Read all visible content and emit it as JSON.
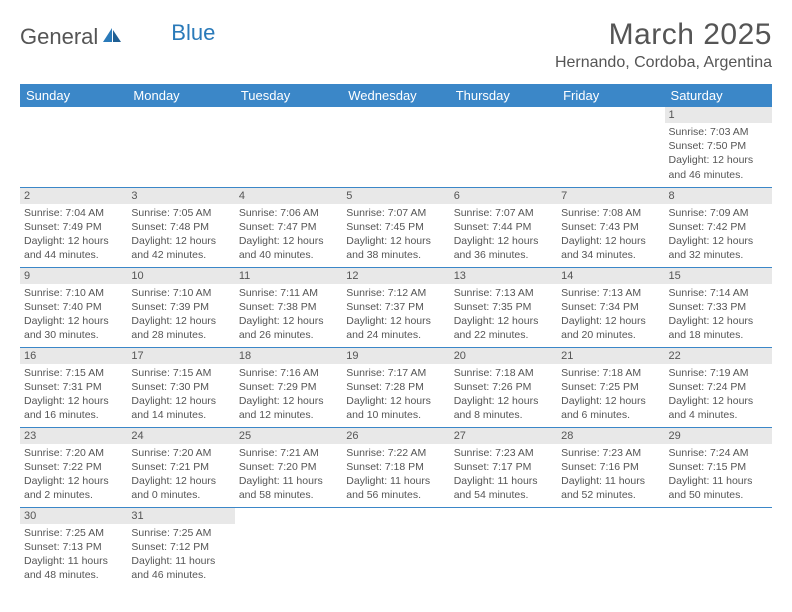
{
  "logo": {
    "part1": "General",
    "part2": "Blue"
  },
  "title": "March 2025",
  "location": "Hernando, Cordoba, Argentina",
  "colors": {
    "header_bg": "#3b87c8",
    "header_text": "#ffffff",
    "daynum_bg": "#e8e8e8",
    "border": "#3b87c8",
    "text": "#555555",
    "logo_blue": "#2a7ab9"
  },
  "weekdays": [
    "Sunday",
    "Monday",
    "Tuesday",
    "Wednesday",
    "Thursday",
    "Friday",
    "Saturday"
  ],
  "weeks": [
    [
      null,
      null,
      null,
      null,
      null,
      null,
      {
        "n": "1",
        "sunrise": "Sunrise: 7:03 AM",
        "sunset": "Sunset: 7:50 PM",
        "day1": "Daylight: 12 hours",
        "day2": "and 46 minutes."
      }
    ],
    [
      {
        "n": "2",
        "sunrise": "Sunrise: 7:04 AM",
        "sunset": "Sunset: 7:49 PM",
        "day1": "Daylight: 12 hours",
        "day2": "and 44 minutes."
      },
      {
        "n": "3",
        "sunrise": "Sunrise: 7:05 AM",
        "sunset": "Sunset: 7:48 PM",
        "day1": "Daylight: 12 hours",
        "day2": "and 42 minutes."
      },
      {
        "n": "4",
        "sunrise": "Sunrise: 7:06 AM",
        "sunset": "Sunset: 7:47 PM",
        "day1": "Daylight: 12 hours",
        "day2": "and 40 minutes."
      },
      {
        "n": "5",
        "sunrise": "Sunrise: 7:07 AM",
        "sunset": "Sunset: 7:45 PM",
        "day1": "Daylight: 12 hours",
        "day2": "and 38 minutes."
      },
      {
        "n": "6",
        "sunrise": "Sunrise: 7:07 AM",
        "sunset": "Sunset: 7:44 PM",
        "day1": "Daylight: 12 hours",
        "day2": "and 36 minutes."
      },
      {
        "n": "7",
        "sunrise": "Sunrise: 7:08 AM",
        "sunset": "Sunset: 7:43 PM",
        "day1": "Daylight: 12 hours",
        "day2": "and 34 minutes."
      },
      {
        "n": "8",
        "sunrise": "Sunrise: 7:09 AM",
        "sunset": "Sunset: 7:42 PM",
        "day1": "Daylight: 12 hours",
        "day2": "and 32 minutes."
      }
    ],
    [
      {
        "n": "9",
        "sunrise": "Sunrise: 7:10 AM",
        "sunset": "Sunset: 7:40 PM",
        "day1": "Daylight: 12 hours",
        "day2": "and 30 minutes."
      },
      {
        "n": "10",
        "sunrise": "Sunrise: 7:10 AM",
        "sunset": "Sunset: 7:39 PM",
        "day1": "Daylight: 12 hours",
        "day2": "and 28 minutes."
      },
      {
        "n": "11",
        "sunrise": "Sunrise: 7:11 AM",
        "sunset": "Sunset: 7:38 PM",
        "day1": "Daylight: 12 hours",
        "day2": "and 26 minutes."
      },
      {
        "n": "12",
        "sunrise": "Sunrise: 7:12 AM",
        "sunset": "Sunset: 7:37 PM",
        "day1": "Daylight: 12 hours",
        "day2": "and 24 minutes."
      },
      {
        "n": "13",
        "sunrise": "Sunrise: 7:13 AM",
        "sunset": "Sunset: 7:35 PM",
        "day1": "Daylight: 12 hours",
        "day2": "and 22 minutes."
      },
      {
        "n": "14",
        "sunrise": "Sunrise: 7:13 AM",
        "sunset": "Sunset: 7:34 PM",
        "day1": "Daylight: 12 hours",
        "day2": "and 20 minutes."
      },
      {
        "n": "15",
        "sunrise": "Sunrise: 7:14 AM",
        "sunset": "Sunset: 7:33 PM",
        "day1": "Daylight: 12 hours",
        "day2": "and 18 minutes."
      }
    ],
    [
      {
        "n": "16",
        "sunrise": "Sunrise: 7:15 AM",
        "sunset": "Sunset: 7:31 PM",
        "day1": "Daylight: 12 hours",
        "day2": "and 16 minutes."
      },
      {
        "n": "17",
        "sunrise": "Sunrise: 7:15 AM",
        "sunset": "Sunset: 7:30 PM",
        "day1": "Daylight: 12 hours",
        "day2": "and 14 minutes."
      },
      {
        "n": "18",
        "sunrise": "Sunrise: 7:16 AM",
        "sunset": "Sunset: 7:29 PM",
        "day1": "Daylight: 12 hours",
        "day2": "and 12 minutes."
      },
      {
        "n": "19",
        "sunrise": "Sunrise: 7:17 AM",
        "sunset": "Sunset: 7:28 PM",
        "day1": "Daylight: 12 hours",
        "day2": "and 10 minutes."
      },
      {
        "n": "20",
        "sunrise": "Sunrise: 7:18 AM",
        "sunset": "Sunset: 7:26 PM",
        "day1": "Daylight: 12 hours",
        "day2": "and 8 minutes."
      },
      {
        "n": "21",
        "sunrise": "Sunrise: 7:18 AM",
        "sunset": "Sunset: 7:25 PM",
        "day1": "Daylight: 12 hours",
        "day2": "and 6 minutes."
      },
      {
        "n": "22",
        "sunrise": "Sunrise: 7:19 AM",
        "sunset": "Sunset: 7:24 PM",
        "day1": "Daylight: 12 hours",
        "day2": "and 4 minutes."
      }
    ],
    [
      {
        "n": "23",
        "sunrise": "Sunrise: 7:20 AM",
        "sunset": "Sunset: 7:22 PM",
        "day1": "Daylight: 12 hours",
        "day2": "and 2 minutes."
      },
      {
        "n": "24",
        "sunrise": "Sunrise: 7:20 AM",
        "sunset": "Sunset: 7:21 PM",
        "day1": "Daylight: 12 hours",
        "day2": "and 0 minutes."
      },
      {
        "n": "25",
        "sunrise": "Sunrise: 7:21 AM",
        "sunset": "Sunset: 7:20 PM",
        "day1": "Daylight: 11 hours",
        "day2": "and 58 minutes."
      },
      {
        "n": "26",
        "sunrise": "Sunrise: 7:22 AM",
        "sunset": "Sunset: 7:18 PM",
        "day1": "Daylight: 11 hours",
        "day2": "and 56 minutes."
      },
      {
        "n": "27",
        "sunrise": "Sunrise: 7:23 AM",
        "sunset": "Sunset: 7:17 PM",
        "day1": "Daylight: 11 hours",
        "day2": "and 54 minutes."
      },
      {
        "n": "28",
        "sunrise": "Sunrise: 7:23 AM",
        "sunset": "Sunset: 7:16 PM",
        "day1": "Daylight: 11 hours",
        "day2": "and 52 minutes."
      },
      {
        "n": "29",
        "sunrise": "Sunrise: 7:24 AM",
        "sunset": "Sunset: 7:15 PM",
        "day1": "Daylight: 11 hours",
        "day2": "and 50 minutes."
      }
    ],
    [
      {
        "n": "30",
        "sunrise": "Sunrise: 7:25 AM",
        "sunset": "Sunset: 7:13 PM",
        "day1": "Daylight: 11 hours",
        "day2": "and 48 minutes."
      },
      {
        "n": "31",
        "sunrise": "Sunrise: 7:25 AM",
        "sunset": "Sunset: 7:12 PM",
        "day1": "Daylight: 11 hours",
        "day2": "and 46 minutes."
      },
      null,
      null,
      null,
      null,
      null
    ]
  ]
}
